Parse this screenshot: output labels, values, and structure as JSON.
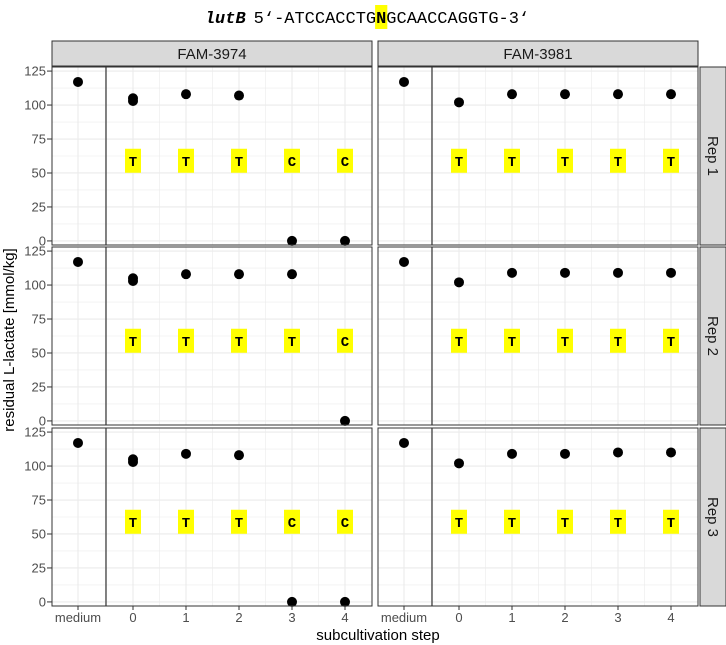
{
  "title": {
    "gene": "lutB",
    "seq_prefix": "5‘-ATCCACCTG",
    "seq_variant": "N",
    "seq_suffix": "GCAACCAGGTG-3‘",
    "highlight_color": "#ffff00"
  },
  "chart_data": {
    "type": "scatter",
    "xlabel": "subcultivation step",
    "ylabel": "residual L-lactate [mmol/kg]",
    "categories": [
      "medium",
      "0",
      "1",
      "2",
      "3",
      "4"
    ],
    "ylim": [
      -3,
      128
    ],
    "yticks": [
      0,
      25,
      50,
      75,
      100,
      125
    ],
    "columns": [
      "FAM-3974",
      "FAM-3981"
    ],
    "rows": [
      "Rep 1",
      "Rep 2",
      "Rep 3"
    ],
    "base_label_y": 59,
    "grid": true,
    "panels": [
      {
        "column": "FAM-3974",
        "row": "Rep 1",
        "points": [
          [
            "medium",
            117
          ],
          [
            "0",
            105
          ],
          [
            "0",
            103
          ],
          [
            "1",
            108
          ],
          [
            "2",
            107
          ],
          [
            "3",
            0
          ],
          [
            "4",
            0
          ]
        ],
        "bases": [
          "T",
          "T",
          "T",
          "C",
          "C"
        ]
      },
      {
        "column": "FAM-3981",
        "row": "Rep 1",
        "points": [
          [
            "medium",
            117
          ],
          [
            "0",
            102
          ],
          [
            "1",
            108
          ],
          [
            "2",
            108
          ],
          [
            "3",
            108
          ],
          [
            "4",
            108
          ]
        ],
        "bases": [
          "T",
          "T",
          "T",
          "T",
          "T"
        ]
      },
      {
        "column": "FAM-3974",
        "row": "Rep 2",
        "points": [
          [
            "medium",
            117
          ],
          [
            "0",
            105
          ],
          [
            "0",
            103
          ],
          [
            "1",
            108
          ],
          [
            "2",
            108
          ],
          [
            "3",
            108
          ],
          [
            "4",
            0
          ]
        ],
        "bases": [
          "T",
          "T",
          "T",
          "T",
          "C"
        ]
      },
      {
        "column": "FAM-3981",
        "row": "Rep 2",
        "points": [
          [
            "medium",
            117
          ],
          [
            "0",
            102
          ],
          [
            "1",
            109
          ],
          [
            "2",
            109
          ],
          [
            "3",
            109
          ],
          [
            "4",
            109
          ]
        ],
        "bases": [
          "T",
          "T",
          "T",
          "T",
          "T"
        ]
      },
      {
        "column": "FAM-3974",
        "row": "Rep 3",
        "points": [
          [
            "medium",
            117
          ],
          [
            "0",
            105
          ],
          [
            "0",
            103
          ],
          [
            "1",
            109
          ],
          [
            "2",
            108
          ],
          [
            "3",
            0
          ],
          [
            "4",
            0
          ]
        ],
        "bases": [
          "T",
          "T",
          "T",
          "C",
          "C"
        ]
      },
      {
        "column": "FAM-3981",
        "row": "Rep 3",
        "points": [
          [
            "medium",
            117
          ],
          [
            "0",
            102
          ],
          [
            "1",
            109
          ],
          [
            "2",
            109
          ],
          [
            "3",
            110
          ],
          [
            "4",
            110
          ]
        ],
        "bases": [
          "T",
          "T",
          "T",
          "T",
          "T"
        ]
      }
    ],
    "colors": {
      "point": "#000000",
      "base_highlight": "#ffff00",
      "strip_fill": "#d9d9d9",
      "strip_border": "#333333",
      "panel_border": "#333333",
      "grid": "#ebebeb",
      "separator": "#333333"
    }
  }
}
